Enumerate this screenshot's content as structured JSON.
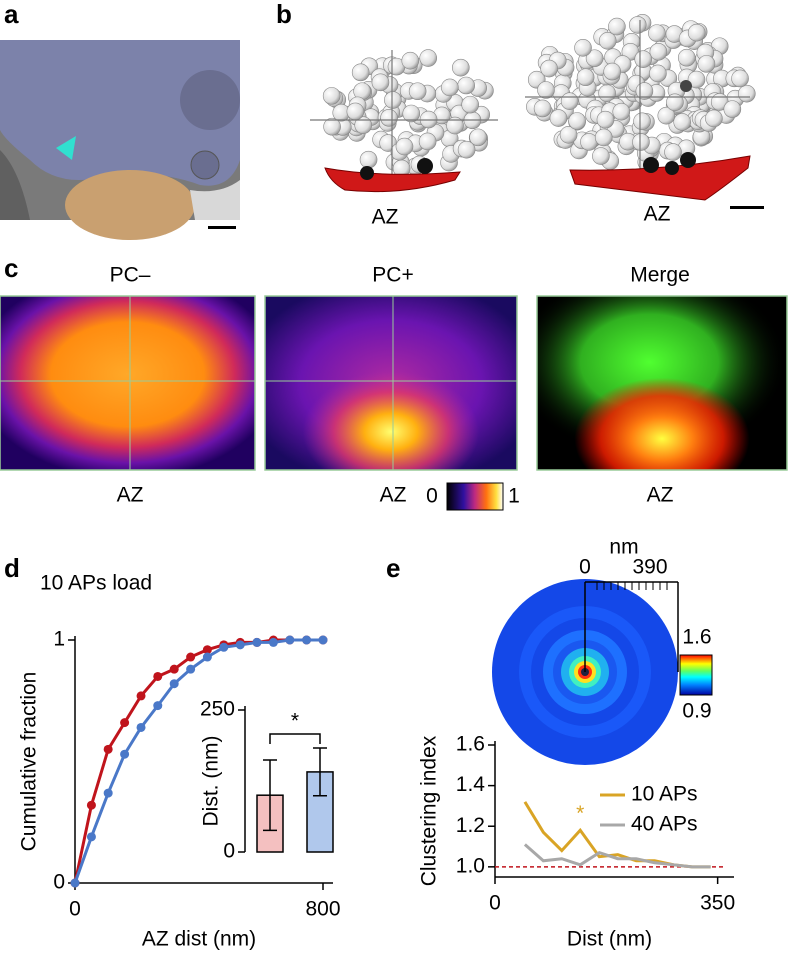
{
  "panel_labels": [
    "a",
    "b",
    "c",
    "d",
    "e"
  ],
  "b": {
    "az_labels": [
      "AZ",
      "AZ"
    ]
  },
  "c": {
    "titles": [
      "PC–",
      "PC+",
      "Merge"
    ],
    "az_labels": [
      "AZ",
      "AZ",
      "AZ"
    ],
    "colorbar_min": 0,
    "colorbar_max": 1
  },
  "e_map": {
    "unit": "nm",
    "scale_start": 0,
    "scale_end": 390,
    "colorbar_max": 1.6,
    "colorbar_min": 0.9
  },
  "chart_data": [
    {
      "type": "line",
      "title": "10 APs load",
      "xlabel": "AZ dist (nm)",
      "ylabel": "Cumulative fraction",
      "x": [
        0,
        53,
        107,
        160,
        213,
        267,
        320,
        373,
        427,
        480,
        533,
        587,
        640,
        693,
        747,
        800
      ],
      "series": [
        {
          "color": "#c0141c",
          "values": [
            0,
            0.32,
            0.55,
            0.66,
            0.77,
            0.85,
            0.88,
            0.93,
            0.96,
            0.98,
            0.99,
            0.99,
            1,
            1,
            1,
            1
          ]
        },
        {
          "color": "#4a78c8",
          "values": [
            0,
            0.19,
            0.37,
            0.53,
            0.64,
            0.73,
            0.82,
            0.88,
            0.93,
            0.97,
            0.98,
            0.99,
            0.99,
            1,
            1,
            1
          ]
        }
      ],
      "markers": true,
      "xlim": [
        0,
        800
      ],
      "ylim": [
        0,
        1
      ],
      "xticks": [
        0,
        800
      ],
      "yticks": [
        0,
        1
      ]
    },
    {
      "type": "bar",
      "ylabel": "Dist. (nm)",
      "categories": [
        null,
        null
      ],
      "values": [
        100,
        141
      ],
      "errors": [
        62,
        42
      ],
      "colors": [
        "#f4c0c0",
        "#b0c8ec"
      ],
      "ylim": [
        0,
        250
      ],
      "yticks": [
        0,
        250
      ],
      "annotation": "*"
    },
    {
      "type": "line",
      "xlabel": "Dist (nm)",
      "ylabel": "Clustering index",
      "x": [
        47,
        76,
        105,
        134,
        164,
        193,
        222,
        251,
        281,
        310,
        339
      ],
      "series": [
        {
          "name": "10 APs",
          "color": "#d9a425",
          "values": [
            1.32,
            1.17,
            1.08,
            1.18,
            1.05,
            1.06,
            1.03,
            1.03,
            1.01,
            1.0,
            1.0
          ]
        },
        {
          "name": "40 APs",
          "color": "#a8a8a8",
          "values": [
            1.11,
            1.03,
            1.04,
            1.01,
            1.07,
            1.04,
            1.04,
            1.02,
            1.01,
            1.0,
            1.0
          ]
        }
      ],
      "reference_line": 1,
      "reference_color": "#c0141c",
      "annotation": "*",
      "legend": "right",
      "xlim": [
        0,
        360
      ],
      "ylim": [
        0.95,
        1.6
      ],
      "xticks": [
        0,
        350
      ],
      "yticks": [
        {
          "value": 1,
          "label": "1.0"
        },
        1.2,
        1.4,
        1.6
      ]
    }
  ]
}
